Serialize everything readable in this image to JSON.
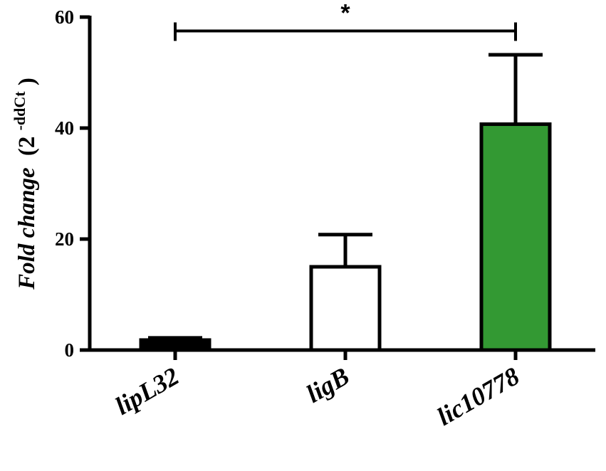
{
  "chart_data": {
    "type": "bar",
    "categories": [
      "lipL32",
      "ligB",
      "lic10778"
    ],
    "values": [
      1.8,
      15.0,
      40.7
    ],
    "error_upper": [
      2.2,
      20.8,
      53.2
    ],
    "bar_colors": [
      "#000000",
      "#ffffff",
      "#339933"
    ],
    "ylabel_italic": "Fold change",
    "ylabel_base": "(2",
    "ylabel_sup": "-ddCt",
    "ylabel_close": ")",
    "ylim": [
      0,
      60
    ],
    "yticks": [
      "0",
      "20",
      "40",
      "60"
    ],
    "significance": {
      "from": "lipL32",
      "to": "lic10778",
      "label": "*",
      "y": 57.5
    },
    "grid": false
  }
}
